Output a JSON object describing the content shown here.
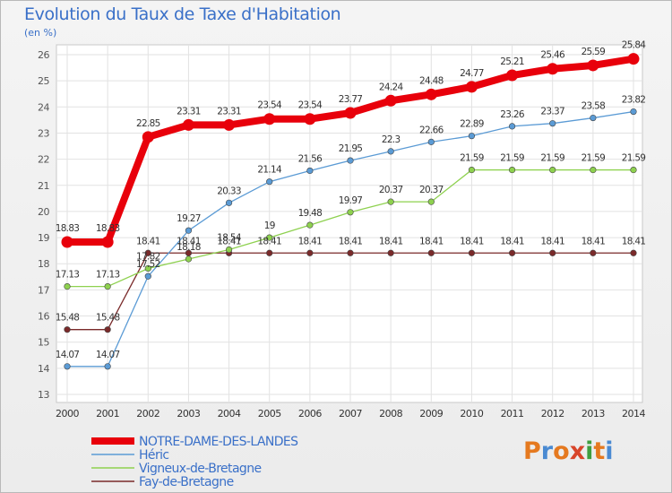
{
  "title": "Evolution du Taux de Taxe d'Habitation",
  "subtitle": "(en %)",
  "logo_text": "Proxiti",
  "chart_data": {
    "type": "line",
    "title": "Evolution du Taux de Taxe d'Habitation",
    "ylabel": "(en %)",
    "xlabel": "",
    "ylim": [
      13,
      26
    ],
    "grid": true,
    "legend_position": "bottom-left",
    "x": [
      2000,
      2001,
      2002,
      2003,
      2004,
      2005,
      2006,
      2007,
      2008,
      2009,
      2010,
      2011,
      2012,
      2013,
      2014
    ],
    "x_tick_labels": [
      "2000",
      "2001",
      "2002",
      "2003",
      "2004",
      "2005",
      "2006",
      "2007",
      "2008",
      "2009",
      "2010",
      "2011",
      "2012",
      "2013",
      "2014"
    ],
    "y_tick_labels": [
      "13",
      "14",
      "15",
      "16",
      "17",
      "18",
      "19",
      "20",
      "21",
      "22",
      "23",
      "24",
      "25",
      "26"
    ],
    "series": [
      {
        "name": "NOTRE-DAME-DES-LANDES",
        "color": "#e8000b",
        "values": [
          18.83,
          18.83,
          22.85,
          23.31,
          23.31,
          23.54,
          23.54,
          23.77,
          24.24,
          24.48,
          24.77,
          25.21,
          25.46,
          25.59,
          25.84
        ],
        "labels": [
          "18.83",
          "18.83",
          "22.85",
          "23.31",
          "23.31",
          "23.54",
          "23.54",
          "23.77",
          "24.24",
          "24.48",
          "24.77",
          "25.21",
          "25.46",
          "25.59",
          "25.84"
        ]
      },
      {
        "name": "Héric",
        "color": "#5b9bd5",
        "values": [
          14.07,
          14.07,
          17.52,
          19.27,
          20.33,
          21.14,
          21.56,
          21.95,
          22.3,
          22.66,
          22.89,
          23.26,
          23.37,
          23.58,
          23.82
        ],
        "labels": [
          "14.07",
          "14.07",
          "17.52",
          "19.27",
          "20.33",
          "21.14",
          "21.56",
          "21.95",
          "22.3",
          "22.66",
          "22.89",
          "23.26",
          "23.37",
          "23.58",
          "23.82"
        ]
      },
      {
        "name": "Vigneux-de-Bretagne",
        "color": "#8ed14f",
        "values": [
          17.13,
          17.13,
          17.82,
          18.18,
          18.54,
          19,
          19.48,
          19.97,
          20.37,
          20.37,
          21.59,
          21.59,
          21.59,
          21.59,
          21.59
        ],
        "labels": [
          "17.13",
          "17.13",
          "17.82",
          "18.18",
          "18.54",
          "19",
          "19.48",
          "19.97",
          "20.37",
          "20.37",
          "21.59",
          "21.59",
          "21.59",
          "21.59",
          "21.59"
        ]
      },
      {
        "name": "Fay-de-Bretagne",
        "color": "#7a2a2a",
        "values": [
          15.48,
          15.48,
          18.41,
          18.41,
          18.41,
          18.41,
          18.41,
          18.41,
          18.41,
          18.41,
          18.41,
          18.41,
          18.41,
          18.41,
          18.41
        ],
        "labels": [
          "15.48",
          "15.48",
          "18.41",
          "18.41",
          "18.41",
          "18.41",
          "18.41",
          "18.41",
          "18.41",
          "18.41",
          "18.41",
          "18.41",
          "18.41",
          "18.41",
          "18.41"
        ]
      }
    ]
  },
  "logo_colors": [
    "#e5791f",
    "#4a8ad2",
    "#e5791f",
    "#d8452a",
    "#3f9e3f",
    "#e5791f",
    "#4a8ad2"
  ]
}
